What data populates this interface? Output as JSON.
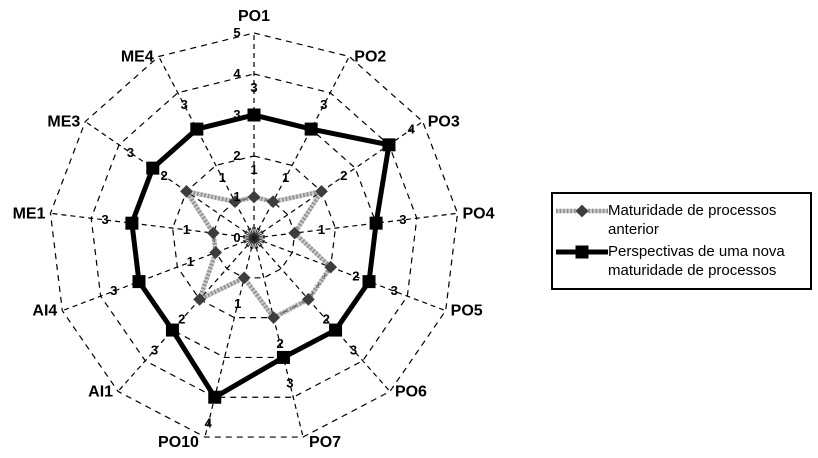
{
  "chart_data": {
    "type": "radar",
    "categories": [
      "PO1",
      "PO2",
      "PO3",
      "PO4",
      "PO5",
      "PO6",
      "PO7",
      "PO10",
      "AI1",
      "AI4",
      "ME1",
      "ME3",
      "ME4"
    ],
    "series": [
      {
        "name": "Maturidade de processos anterior",
        "values": [
          1,
          1,
          2,
          1,
          2,
          2,
          2,
          1,
          2,
          1,
          1,
          2,
          1
        ],
        "marker": "diamond",
        "line_style": "textured-thin",
        "color": "#8f8f8f",
        "marker_color": "#3d3d3d"
      },
      {
        "name": "Perspectivas de uma nova maturidade de processos",
        "values": [
          3,
          3,
          4,
          3,
          3,
          3,
          3,
          4,
          3,
          3,
          3,
          3,
          3
        ],
        "marker": "square",
        "line_style": "solid-thick",
        "color": "#000000",
        "marker_color": "#000000"
      }
    ],
    "scale": {
      "min": 0,
      "max": 5,
      "step": 1,
      "ticks": [
        "0",
        "1",
        "2",
        "3",
        "4",
        "5"
      ]
    },
    "grid": {
      "rings": 5,
      "spokes": 13,
      "style": "dashed",
      "color": "#000000"
    },
    "data_labels": true,
    "label_color": "#000000",
    "legend": {
      "position": "right",
      "bordered": true
    },
    "background": "#ffffff"
  }
}
